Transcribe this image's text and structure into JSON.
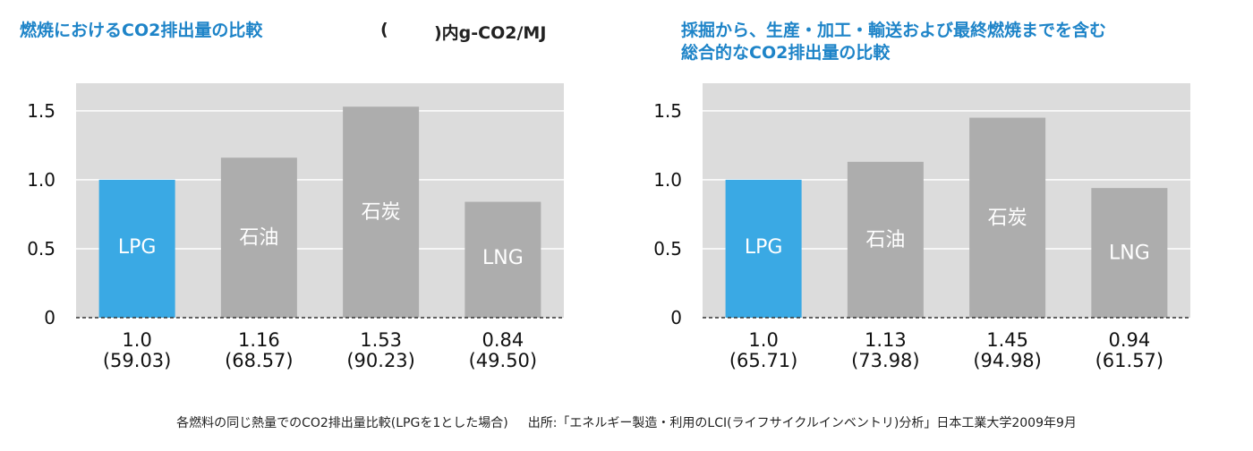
{
  "charts": {
    "left": {
      "title": "燃焼におけるCO2排出量の比較",
      "unit_paren_open": "(",
      "unit_paren_close": ")内g-CO2/MJ"
    },
    "right": {
      "title_line1": "採掘から、生産・加工・輸送および最終燃焼までを含む",
      "title_line2": "総合的なCO2排出量の比較"
    }
  },
  "footer": {
    "note": "各燃料の同じ熱量でのCO2排出量比較(LPGを1とした場合)",
    "source": "出所:「エネルギー製造・利用のLCI(ライフサイクルインベントリ)分析」日本工業大学2009年9月"
  },
  "colors": {
    "highlight": "#3aa9e4",
    "bar": "#adadad",
    "plot_bg": "#dcdcdc",
    "title": "#1e84c8"
  },
  "chart_data": [
    {
      "type": "bar",
      "categories": [
        "LPG",
        "石油",
        "石炭",
        "LNG"
      ],
      "values": [
        1.0,
        1.16,
        1.53,
        0.84
      ],
      "value_labels": [
        "1.0",
        "1.16",
        "1.53",
        "0.84"
      ],
      "sub_labels": [
        "(59.03)",
        "(68.57)",
        "(90.23)",
        "(49.50)"
      ],
      "yticks": [
        0,
        0.5,
        1.0,
        1.5
      ],
      "ytick_labels": [
        "0",
        "0.5",
        "1.0",
        "1.5"
      ],
      "ylim": [
        0,
        1.7
      ],
      "grid": true
    },
    {
      "type": "bar",
      "categories": [
        "LPG",
        "石油",
        "石炭",
        "LNG"
      ],
      "values": [
        1.0,
        1.13,
        1.45,
        0.94
      ],
      "value_labels": [
        "1.0",
        "1.13",
        "1.45",
        "0.94"
      ],
      "sub_labels": [
        "(65.71)",
        "(73.98)",
        "(94.98)",
        "(61.57)"
      ],
      "yticks": [
        0,
        0.5,
        1.0,
        1.5
      ],
      "ytick_labels": [
        "0",
        "0.5",
        "1.0",
        "1.5"
      ],
      "ylim": [
        0,
        1.7
      ],
      "grid": true
    }
  ]
}
